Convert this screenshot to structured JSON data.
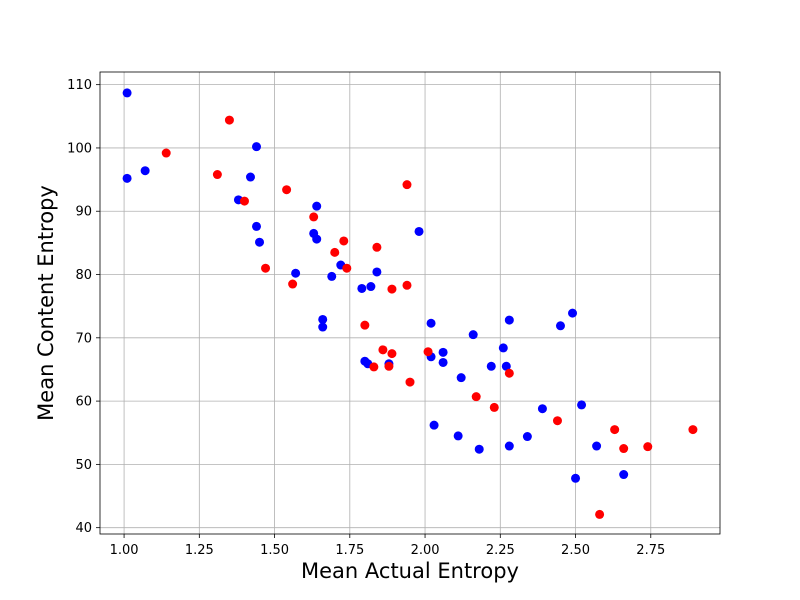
{
  "chart_data": {
    "type": "scatter",
    "title": "",
    "xlabel": "Mean Actual Entropy",
    "ylabel": "Mean Content Entropy",
    "xlim": [
      0.92,
      2.98
    ],
    "ylim": [
      39.0,
      112.0
    ],
    "xticks": [
      1.0,
      1.25,
      1.5,
      1.75,
      2.0,
      2.25,
      2.5,
      2.75
    ],
    "xtick_labels": [
      "1.00",
      "1.25",
      "1.50",
      "1.75",
      "2.00",
      "2.25",
      "2.50",
      "2.75"
    ],
    "yticks": [
      40,
      50,
      60,
      70,
      80,
      90,
      100,
      110
    ],
    "ytick_labels": [
      "40",
      "50",
      "60",
      "70",
      "80",
      "90",
      "100",
      "110"
    ],
    "grid": true,
    "legend": null,
    "series": [
      {
        "color": "#0000ff",
        "points": [
          [
            1.01,
            108.7
          ],
          [
            1.01,
            95.2
          ],
          [
            1.07,
            96.4
          ],
          [
            1.38,
            91.8
          ],
          [
            1.42,
            95.4
          ],
          [
            1.44,
            100.2
          ],
          [
            1.44,
            87.6
          ],
          [
            1.45,
            85.1
          ],
          [
            1.57,
            80.2
          ],
          [
            1.64,
            90.8
          ],
          [
            1.63,
            86.5
          ],
          [
            1.64,
            85.6
          ],
          [
            1.66,
            72.9
          ],
          [
            1.66,
            71.7
          ],
          [
            1.69,
            79.7
          ],
          [
            1.72,
            81.5
          ],
          [
            1.79,
            77.8
          ],
          [
            1.82,
            78.1
          ],
          [
            1.84,
            80.4
          ],
          [
            1.8,
            66.3
          ],
          [
            1.81,
            65.9
          ],
          [
            1.88,
            65.9
          ],
          [
            1.98,
            86.8
          ],
          [
            2.02,
            72.3
          ],
          [
            2.02,
            67.0
          ],
          [
            2.06,
            67.7
          ],
          [
            2.06,
            66.1
          ],
          [
            2.03,
            56.2
          ],
          [
            2.11,
            54.5
          ],
          [
            2.12,
            63.7
          ],
          [
            2.16,
            70.5
          ],
          [
            2.18,
            52.4
          ],
          [
            2.22,
            65.5
          ],
          [
            2.26,
            68.4
          ],
          [
            2.27,
            65.5
          ],
          [
            2.28,
            72.8
          ],
          [
            2.28,
            52.9
          ],
          [
            2.34,
            54.4
          ],
          [
            2.39,
            58.8
          ],
          [
            2.45,
            71.9
          ],
          [
            2.49,
            73.9
          ],
          [
            2.5,
            47.8
          ],
          [
            2.52,
            59.4
          ],
          [
            2.57,
            52.9
          ],
          [
            2.66,
            48.4
          ]
        ]
      },
      {
        "color": "#ff0000",
        "points": [
          [
            1.14,
            99.2
          ],
          [
            1.31,
            95.8
          ],
          [
            1.35,
            104.4
          ],
          [
            1.4,
            91.6
          ],
          [
            1.47,
            81.0
          ],
          [
            1.54,
            93.4
          ],
          [
            1.56,
            78.5
          ],
          [
            1.63,
            89.1
          ],
          [
            1.7,
            83.5
          ],
          [
            1.73,
            85.3
          ],
          [
            1.74,
            81.0
          ],
          [
            1.8,
            72.0
          ],
          [
            1.83,
            65.4
          ],
          [
            1.84,
            84.3
          ],
          [
            1.86,
            68.1
          ],
          [
            1.88,
            65.5
          ],
          [
            1.89,
            67.5
          ],
          [
            1.89,
            77.7
          ],
          [
            1.94,
            94.2
          ],
          [
            1.94,
            78.3
          ],
          [
            1.95,
            63.0
          ],
          [
            2.01,
            67.8
          ],
          [
            2.17,
            60.7
          ],
          [
            2.23,
            59.0
          ],
          [
            2.28,
            64.4
          ],
          [
            2.44,
            56.9
          ],
          [
            2.58,
            42.1
          ],
          [
            2.63,
            55.5
          ],
          [
            2.66,
            52.5
          ],
          [
            2.74,
            52.8
          ],
          [
            2.89,
            55.5
          ]
        ]
      }
    ]
  }
}
